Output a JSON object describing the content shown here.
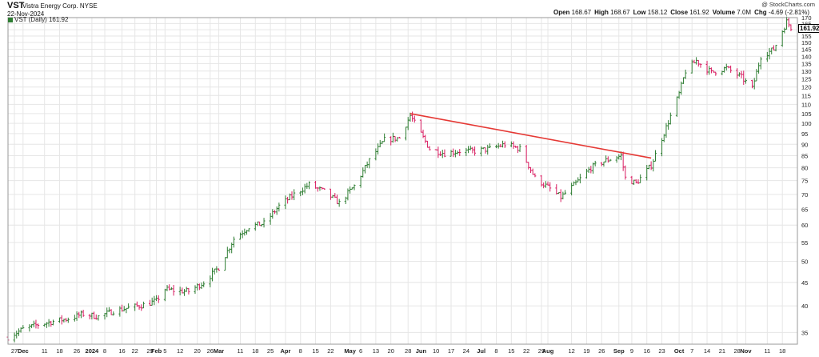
{
  "header": {
    "symbol": "VST",
    "company": "Vistra Energy Corp. NYSE",
    "date": "22-Nov-2024",
    "credit": "@ StockCharts.com",
    "legend": "VST (Daily) 161.92",
    "last_label": "161.92",
    "stats": [
      {
        "k": "Open",
        "v": "168.67"
      },
      {
        "k": "High",
        "v": "168.67"
      },
      {
        "k": "Low",
        "v": "158.12"
      },
      {
        "k": "Close",
        "v": "161.92"
      },
      {
        "k": "Volume",
        "v": "7.0M"
      },
      {
        "k": "Chg",
        "v": "-4.69 (-2.81%)"
      }
    ]
  },
  "colors": {
    "up": "#2e7d32",
    "down": "#d81b60",
    "trendline": "#e53935",
    "grid": "#e6e6e6"
  },
  "chart_data": {
    "type": "ohlc",
    "scale": "log",
    "ylim": [
      33,
      170
    ],
    "yticks": [
      35,
      40,
      45,
      50,
      55,
      60,
      65,
      70,
      75,
      80,
      85,
      90,
      95,
      100,
      105,
      110,
      115,
      120,
      125,
      130,
      135,
      140,
      145,
      150,
      155,
      160,
      165,
      170
    ],
    "xrange": [
      "2023-11-24",
      "2024-11-25"
    ],
    "xticks": [
      {
        "d": "2023-11-27",
        "label": "27",
        "bold": false
      },
      {
        "d": "2023-12-01",
        "label": "Dec",
        "bold": true
      },
      {
        "d": "2023-12-11",
        "label": "11",
        "bold": false
      },
      {
        "d": "2023-12-18",
        "label": "18",
        "bold": false
      },
      {
        "d": "2023-12-26",
        "label": "26",
        "bold": false
      },
      {
        "d": "2024-01-02",
        "label": "2024",
        "bold": true
      },
      {
        "d": "2024-01-08",
        "label": "8",
        "bold": false
      },
      {
        "d": "2024-01-16",
        "label": "16",
        "bold": false
      },
      {
        "d": "2024-01-22",
        "label": "22",
        "bold": false
      },
      {
        "d": "2024-01-29",
        "label": "29",
        "bold": false
      },
      {
        "d": "2024-02-01",
        "label": "Feb",
        "bold": true
      },
      {
        "d": "2024-02-05",
        "label": "5",
        "bold": false
      },
      {
        "d": "2024-02-12",
        "label": "12",
        "bold": false
      },
      {
        "d": "2024-02-20",
        "label": "20",
        "bold": false
      },
      {
        "d": "2024-02-26",
        "label": "26",
        "bold": false
      },
      {
        "d": "2024-03-01",
        "label": "Mar",
        "bold": true
      },
      {
        "d": "2024-03-11",
        "label": "11",
        "bold": false
      },
      {
        "d": "2024-03-18",
        "label": "18",
        "bold": false
      },
      {
        "d": "2024-03-25",
        "label": "25",
        "bold": false
      },
      {
        "d": "2024-04-01",
        "label": "Apr",
        "bold": true
      },
      {
        "d": "2024-04-08",
        "label": "8",
        "bold": false
      },
      {
        "d": "2024-04-15",
        "label": "15",
        "bold": false
      },
      {
        "d": "2024-04-22",
        "label": "22",
        "bold": false
      },
      {
        "d": "2024-05-01",
        "label": "May",
        "bold": true
      },
      {
        "d": "2024-05-06",
        "label": "6",
        "bold": false
      },
      {
        "d": "2024-05-13",
        "label": "13",
        "bold": false
      },
      {
        "d": "2024-05-20",
        "label": "20",
        "bold": false
      },
      {
        "d": "2024-05-28",
        "label": "28",
        "bold": false
      },
      {
        "d": "2024-06-03",
        "label": "Jun",
        "bold": true
      },
      {
        "d": "2024-06-10",
        "label": "10",
        "bold": false
      },
      {
        "d": "2024-06-17",
        "label": "17",
        "bold": false
      },
      {
        "d": "2024-06-24",
        "label": "24",
        "bold": false
      },
      {
        "d": "2024-07-01",
        "label": "Jul",
        "bold": true
      },
      {
        "d": "2024-07-08",
        "label": "8",
        "bold": false
      },
      {
        "d": "2024-07-15",
        "label": "15",
        "bold": false
      },
      {
        "d": "2024-07-22",
        "label": "22",
        "bold": false
      },
      {
        "d": "2024-07-29",
        "label": "29",
        "bold": false
      },
      {
        "d": "2024-08-01",
        "label": "Aug",
        "bold": true
      },
      {
        "d": "2024-08-12",
        "label": "12",
        "bold": false
      },
      {
        "d": "2024-08-19",
        "label": "19",
        "bold": false
      },
      {
        "d": "2024-08-26",
        "label": "26",
        "bold": false
      },
      {
        "d": "2024-09-03",
        "label": "Sep",
        "bold": true
      },
      {
        "d": "2024-09-09",
        "label": "9",
        "bold": false
      },
      {
        "d": "2024-09-16",
        "label": "16",
        "bold": false
      },
      {
        "d": "2024-09-23",
        "label": "23",
        "bold": false
      },
      {
        "d": "2024-10-01",
        "label": "Oct",
        "bold": true
      },
      {
        "d": "2024-10-07",
        "label": "7",
        "bold": false
      },
      {
        "d": "2024-10-14",
        "label": "14",
        "bold": false
      },
      {
        "d": "2024-10-21",
        "label": "21",
        "bold": false
      },
      {
        "d": "2024-10-28",
        "label": "28",
        "bold": false
      },
      {
        "d": "2024-11-01",
        "label": "Nov",
        "bold": true
      },
      {
        "d": "2024-11-11",
        "label": "11",
        "bold": false
      },
      {
        "d": "2024-11-18",
        "label": "18",
        "bold": false
      }
    ],
    "path": [
      [
        "2023-11-24",
        34.2
      ],
      [
        "2023-12-01",
        35.6
      ],
      [
        "2023-12-08",
        36.4
      ],
      [
        "2023-12-15",
        37.0
      ],
      [
        "2023-12-22",
        37.5
      ],
      [
        "2023-12-29",
        38.4
      ],
      [
        "2024-01-05",
        37.9
      ],
      [
        "2024-01-12",
        39.0
      ],
      [
        "2024-01-19",
        39.6
      ],
      [
        "2024-01-26",
        40.2
      ],
      [
        "2024-02-01",
        41.0
      ],
      [
        "2024-02-05",
        43.5
      ],
      [
        "2024-02-09",
        43.2
      ],
      [
        "2024-02-16",
        43.0
      ],
      [
        "2024-02-23",
        45.0
      ],
      [
        "2024-03-01",
        48.5
      ],
      [
        "2024-03-08",
        56.0
      ],
      [
        "2024-03-15",
        59.5
      ],
      [
        "2024-03-22",
        60.5
      ],
      [
        "2024-03-29",
        66.0
      ],
      [
        "2024-04-05",
        70.0
      ],
      [
        "2024-04-12",
        73.5
      ],
      [
        "2024-04-19",
        71.0
      ],
      [
        "2024-04-26",
        67.0
      ],
      [
        "2024-05-03",
        73.0
      ],
      [
        "2024-05-10",
        83.0
      ],
      [
        "2024-05-17",
        92.0
      ],
      [
        "2024-05-24",
        93.0
      ],
      [
        "2024-05-29",
        104.0
      ],
      [
        "2024-06-07",
        88.0
      ],
      [
        "2024-06-14",
        86.0
      ],
      [
        "2024-06-21",
        87.0
      ],
      [
        "2024-06-28",
        87.0
      ],
      [
        "2024-07-05",
        88.0
      ],
      [
        "2024-07-12",
        90.0
      ],
      [
        "2024-07-19",
        88.0
      ],
      [
        "2024-07-26",
        76.0
      ],
      [
        "2024-08-02",
        72.0
      ],
      [
        "2024-08-07",
        69.0
      ],
      [
        "2024-08-14",
        74.0
      ],
      [
        "2024-08-21",
        80.0
      ],
      [
        "2024-08-28",
        83.0
      ],
      [
        "2024-09-04",
        85.0
      ],
      [
        "2024-09-06",
        76.0
      ],
      [
        "2024-09-11",
        74.0
      ],
      [
        "2024-09-18",
        81.0
      ],
      [
        "2024-09-25",
        98.0
      ],
      [
        "2024-10-01",
        116.0
      ],
      [
        "2024-10-04",
        130.0
      ],
      [
        "2024-10-09",
        137.0
      ],
      [
        "2024-10-16",
        129.0
      ],
      [
        "2024-10-23",
        132.0
      ],
      [
        "2024-10-30",
        126.0
      ],
      [
        "2024-11-04",
        119.0
      ],
      [
        "2024-11-08",
        140.0
      ],
      [
        "2024-11-14",
        145.0
      ],
      [
        "2024-11-20",
        166.6
      ],
      [
        "2024-11-22",
        161.92
      ]
    ],
    "trendline": [
      [
        "2024-05-29",
        105.0
      ],
      [
        "2024-09-18",
        84.0
      ]
    ],
    "last": 161.92
  }
}
